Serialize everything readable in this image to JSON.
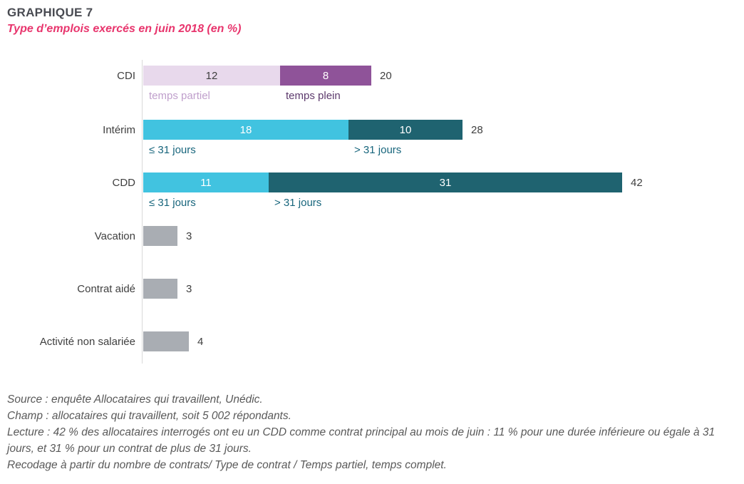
{
  "header": {
    "title": "GRAPHIQUE 7",
    "subtitle": "Type d’emplois exercés en juin 2018 (en %)"
  },
  "colors": {
    "title_text": "#494b52",
    "subtitle_text": "#e8356d",
    "category_text": "#3f3f3f",
    "axis_line": "#d9d9d9",
    "footer_text": "#595959",
    "cdi_temps_partiel": "#e8d9ec",
    "cdi_temps_plein": "#8f5399",
    "cyan_short": "#41c3e0",
    "teal_long": "#1f6370",
    "gray_bar": "#a9adb3"
  },
  "chart_data": {
    "type": "bar",
    "orientation": "horizontal",
    "unit": "%",
    "title": "GRAPHIQUE 7",
    "subtitle": "Type d’emplois exercés en juin 2018 (en %)",
    "value_axis_visible": false,
    "categories": [
      "CDI",
      "Intérim",
      "CDD",
      "Vacation",
      "Contrat aidé",
      "Activité non salariée"
    ],
    "rows": [
      {
        "category": "CDI",
        "total": 20,
        "segments": [
          {
            "label": "temps partiel",
            "value": 12,
            "color": "#e8d9ec",
            "value_color": "#3f3f3f",
            "sublabel_color": "#c0a0cc"
          },
          {
            "label": "temps plein",
            "value": 8,
            "color": "#8f5399",
            "value_color": "#ffffff",
            "sublabel_color": "#5d3a6d"
          }
        ]
      },
      {
        "category": "Intérim",
        "total": 28,
        "segments": [
          {
            "label": "≤ 31 jours",
            "value": 18,
            "color": "#41c3e0",
            "value_color": "#ffffff",
            "sublabel_color": "#17657c"
          },
          {
            "label": "> 31 jours",
            "value": 10,
            "color": "#1f6370",
            "value_color": "#ffffff",
            "sublabel_color": "#17657c"
          }
        ]
      },
      {
        "category": "CDD",
        "total": 42,
        "segments": [
          {
            "label": "≤ 31 jours",
            "value": 11,
            "color": "#41c3e0",
            "value_color": "#ffffff",
            "sublabel_color": "#17657c"
          },
          {
            "label": "> 31 jours",
            "value": 31,
            "color": "#1f6370",
            "value_color": "#ffffff",
            "sublabel_color": "#17657c"
          }
        ]
      },
      {
        "category": "Vacation",
        "total": 3,
        "segments": [
          {
            "label": "",
            "value": 3,
            "color": "#a9adb3",
            "show_value": false
          }
        ]
      },
      {
        "category": "Contrat aidé",
        "total": 3,
        "segments": [
          {
            "label": "",
            "value": 3,
            "color": "#a9adb3",
            "show_value": false
          }
        ]
      },
      {
        "category": "Activité non salariée",
        "total": 4,
        "segments": [
          {
            "label": "",
            "value": 4,
            "color": "#a9adb3",
            "show_value": false
          }
        ]
      }
    ]
  },
  "footer": {
    "lines": [
      "Source : enquête Allocataires qui travaillent, Unédic.",
      "Champ : allocataires qui travaillent, soit 5 002 répondants.",
      "Lecture : 42 % des allocataires interrogés ont eu un CDD comme contrat principal au mois de juin : 11 % pour une durée inférieure ou égale à 31 jours, et 31 % pour un contrat de plus de 31 jours.",
      "Recodage à partir du nombre de contrats/ Type de contrat / Temps partiel, temps complet."
    ]
  }
}
